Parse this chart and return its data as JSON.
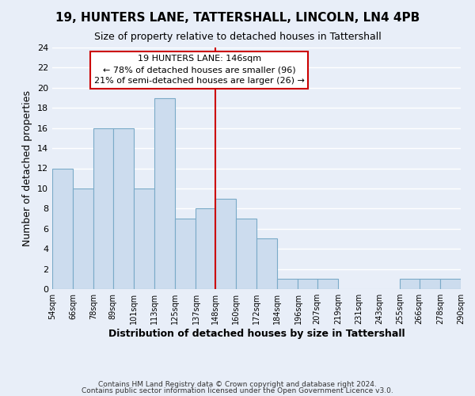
{
  "title": "19, HUNTERS LANE, TATTERSHALL, LINCOLN, LN4 4PB",
  "subtitle": "Size of property relative to detached houses in Tattershall",
  "xlabel": "Distribution of detached houses by size in Tattershall",
  "ylabel": "Number of detached properties",
  "bar_edges": [
    54,
    66,
    78,
    89,
    101,
    113,
    125,
    137,
    148,
    160,
    172,
    184,
    196,
    207,
    219,
    231,
    243,
    255,
    266,
    278,
    290
  ],
  "bar_heights": [
    12,
    10,
    16,
    16,
    10,
    19,
    7,
    8,
    9,
    7,
    5,
    1,
    1,
    1,
    0,
    0,
    0,
    1,
    1,
    1
  ],
  "bar_color": "#ccdcee",
  "bar_edge_color": "#7aaac8",
  "reference_line_x": 148,
  "reference_line_color": "#cc0000",
  "ylim": [
    0,
    24
  ],
  "yticks": [
    0,
    2,
    4,
    6,
    8,
    10,
    12,
    14,
    16,
    18,
    20,
    22,
    24
  ],
  "x_tick_labels": [
    "54sqm",
    "66sqm",
    "78sqm",
    "89sqm",
    "101sqm",
    "113sqm",
    "125sqm",
    "137sqm",
    "148sqm",
    "160sqm",
    "172sqm",
    "184sqm",
    "196sqm",
    "207sqm",
    "219sqm",
    "231sqm",
    "243sqm",
    "255sqm",
    "266sqm",
    "278sqm",
    "290sqm"
  ],
  "annotation_box_title": "19 HUNTERS LANE: 146sqm",
  "annotation_line1": "← 78% of detached houses are smaller (96)",
  "annotation_line2": "21% of semi-detached houses are larger (26) →",
  "annotation_box_facecolor": "#ffffff",
  "annotation_box_edge_color": "#cc0000",
  "footer_line1": "Contains HM Land Registry data © Crown copyright and database right 2024.",
  "footer_line2": "Contains public sector information licensed under the Open Government Licence v3.0.",
  "background_color": "#e8eef8",
  "grid_color": "#ffffff"
}
